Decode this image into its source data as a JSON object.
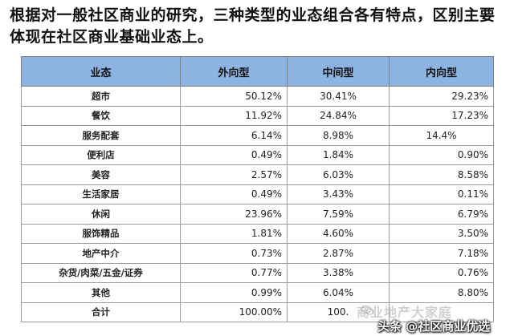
{
  "heading": "根据对一般社区商业的研究，三种类型的业态组合各有特点，区别主要体现在社区商业基础业态上。",
  "table": {
    "headers": [
      "业态",
      "外向型",
      "中间型",
      "内向型"
    ],
    "rows": [
      {
        "name": "超市",
        "values": [
          "50.12%",
          "30.41%",
          "29.23%"
        ]
      },
      {
        "name": "餐饮",
        "values": [
          "11.92%",
          "24.84%",
          "17.23%"
        ]
      },
      {
        "name": "服务配套",
        "values": [
          "6.14%",
          "8.98%",
          "14.4%"
        ]
      },
      {
        "name": "便利店",
        "values": [
          "0.49%",
          "1.84%",
          "0.90%"
        ]
      },
      {
        "name": "美容",
        "values": [
          "2.57%",
          "6.03%",
          "8.58%"
        ]
      },
      {
        "name": "生活家居",
        "values": [
          "0.49%",
          "3.43%",
          "0.11%"
        ]
      },
      {
        "name": "休闲",
        "values": [
          "23.96%",
          "7.59%",
          "6.79%"
        ]
      },
      {
        "name": "服饰精品",
        "values": [
          "1.81%",
          "4.60%",
          "3.50%"
        ]
      },
      {
        "name": "地产中介",
        "values": [
          "0.73%",
          "2.87%",
          "7.18%"
        ]
      },
      {
        "name": "杂货/肉菜/五金/证券",
        "values": [
          "0.77%",
          "3.38%",
          "0.76%"
        ]
      },
      {
        "name": "其他",
        "values": [
          "0.99%",
          "6.04%",
          "8.80%"
        ]
      },
      {
        "name": "合计",
        "values": [
          "100.00%",
          "100.",
          ""
        ]
      }
    ]
  },
  "watermark": {
    "faint": "商业地产大家庭",
    "main": "头条 @社区商业优选",
    "icon": "wechat-icon"
  }
}
